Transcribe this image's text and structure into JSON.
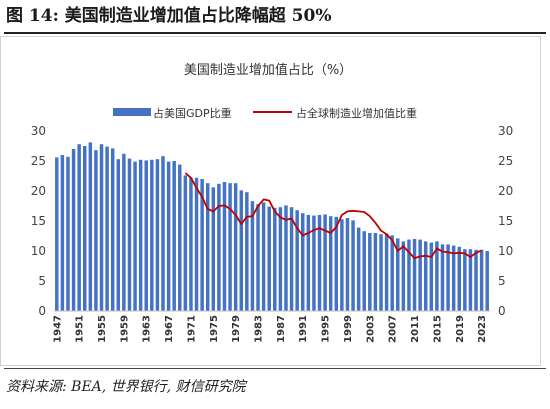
{
  "figure_title": "图 14:  美国制造业增加值占比降幅超 50%",
  "source": "资料来源: BEA, 世界银行, 财信研究院",
  "chart_data": {
    "type": "bar+line",
    "title": "美国制造业增加值占比（%）",
    "legend": [
      "占美国GDP比重",
      "占全球制造业增加值比重"
    ],
    "legend_position": "top",
    "colors": {
      "bars": "#4472c4",
      "line": "#c00000"
    },
    "grid": false,
    "ylim_left": [
      0,
      30
    ],
    "ylim_right": [
      0,
      30
    ],
    "yticks": [
      0,
      5,
      10,
      15,
      20,
      25,
      30
    ],
    "xtick_labels": [
      "1947",
      "1951",
      "1955",
      "1959",
      "1963",
      "1967",
      "1971",
      "1975",
      "1979",
      "1983",
      "1987",
      "1991",
      "1995",
      "1999",
      "2003",
      "2007",
      "2011",
      "2015",
      "2019",
      "2023"
    ],
    "years": [
      1947,
      1948,
      1949,
      1950,
      1951,
      1952,
      1953,
      1954,
      1955,
      1956,
      1957,
      1958,
      1959,
      1960,
      1961,
      1962,
      1963,
      1964,
      1965,
      1966,
      1967,
      1968,
      1969,
      1970,
      1971,
      1972,
      1973,
      1974,
      1975,
      1976,
      1977,
      1978,
      1979,
      1980,
      1981,
      1982,
      1983,
      1984,
      1985,
      1986,
      1987,
      1988,
      1989,
      1990,
      1991,
      1992,
      1993,
      1994,
      1995,
      1996,
      1997,
      1998,
      1999,
      2000,
      2001,
      2002,
      2003,
      2004,
      2005,
      2006,
      2007,
      2008,
      2009,
      2010,
      2011,
      2012,
      2013,
      2014,
      2015,
      2016,
      2017,
      2018,
      2019,
      2020,
      2021,
      2022,
      2023,
      2024
    ],
    "series": [
      {
        "name": "占美国GDP比重",
        "type": "bar",
        "values": [
          25.6,
          26.0,
          25.7,
          27.0,
          27.8,
          27.5,
          28.1,
          26.8,
          27.8,
          27.4,
          27.1,
          25.3,
          26.2,
          25.4,
          24.9,
          25.2,
          25.1,
          25.2,
          25.3,
          25.8,
          24.9,
          25.0,
          24.4,
          22.6,
          22.2,
          22.2,
          22.0,
          21.3,
          20.6,
          21.2,
          21.5,
          21.3,
          21.3,
          20.1,
          19.8,
          18.3,
          17.8,
          18.1,
          17.4,
          17.2,
          17.3,
          17.6,
          17.3,
          16.8,
          16.3,
          16.0,
          15.9,
          16.0,
          16.1,
          15.8,
          15.7,
          15.3,
          15.5,
          15.1,
          13.9,
          13.3,
          13.0,
          13.0,
          12.8,
          12.9,
          12.6,
          12.1,
          11.6,
          11.9,
          12.0,
          11.9,
          11.6,
          11.4,
          11.6,
          11.1,
          11.1,
          10.9,
          10.7,
          10.3,
          10.3,
          10.2,
          10.2,
          10.0
        ]
      },
      {
        "name": "占全球制造业增加值比重",
        "type": "line",
        "x": [
          1970,
          1971,
          1972,
          1973,
          1974,
          1975,
          1976,
          1977,
          1978,
          1979,
          1980,
          1981,
          1982,
          1983,
          1984,
          1985,
          1986,
          1987,
          1988,
          1989,
          1990,
          1991,
          1992,
          1993,
          1994,
          1995,
          1996,
          1997,
          1998,
          1999,
          2000,
          2001,
          2002,
          2003,
          2004,
          2005,
          2006,
          2007,
          2008,
          2009,
          2010,
          2011,
          2012,
          2013,
          2014,
          2015,
          2016,
          2017,
          2018,
          2019,
          2020,
          2021,
          2022,
          2023
        ],
        "values": [
          23.0,
          22.2,
          20.5,
          19.0,
          17.0,
          16.6,
          17.5,
          17.6,
          17.0,
          16.0,
          14.5,
          15.7,
          15.8,
          17.5,
          18.6,
          18.4,
          16.6,
          15.6,
          15.2,
          15.4,
          13.8,
          12.6,
          13.0,
          13.5,
          13.8,
          13.4,
          13.0,
          14.0,
          16.0,
          16.6,
          16.7,
          16.6,
          16.5,
          15.8,
          14.7,
          13.4,
          12.8,
          11.8,
          10.0,
          10.8,
          9.8,
          8.8,
          9.1,
          9.2,
          9.0,
          10.4,
          9.9,
          9.8,
          9.6,
          9.7,
          9.6,
          9.0,
          9.7,
          10.1
        ]
      }
    ]
  }
}
